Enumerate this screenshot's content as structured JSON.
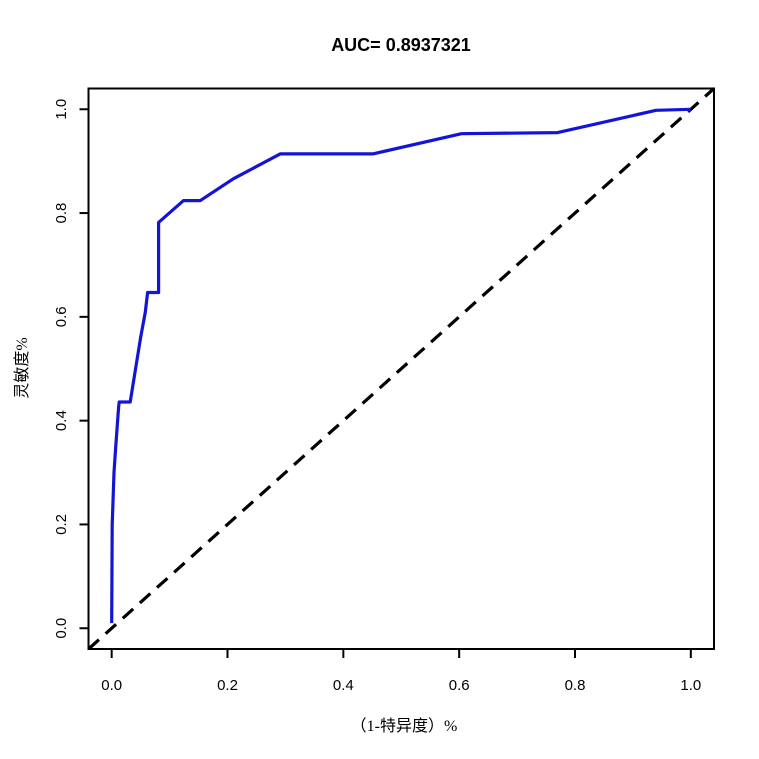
{
  "chart_data": {
    "type": "line",
    "title": "AUC= 0.8937321",
    "auc": 0.8937321,
    "xlabel": "（1-特异度）%",
    "ylabel": "灵敏度%",
    "xlim": [
      0,
      1
    ],
    "ylim": [
      0,
      1
    ],
    "x_ticks": [
      0.0,
      0.2,
      0.4,
      0.6,
      0.8,
      1.0
    ],
    "y_ticks": [
      0.0,
      0.2,
      0.4,
      0.6,
      0.8,
      1.0
    ],
    "x_tick_labels": [
      "0.0",
      "0.2",
      "0.4",
      "0.6",
      "0.8",
      "1.0"
    ],
    "y_tick_labels": [
      "0.0",
      "0.2",
      "0.4",
      "0.6",
      "0.8",
      "1.0"
    ],
    "grid": false,
    "legend_position": "none",
    "box": true,
    "colors": {
      "roc_curve": "#1414d6",
      "reference_line": "#000000",
      "axis": "#000000",
      "background": "#ffffff"
    },
    "series": [
      {
        "name": "roc-curve",
        "style": "solid",
        "color": "#1414d6",
        "width": 3.2,
        "points": [
          [
            0.0,
            0.01
          ],
          [
            0.001,
            0.2
          ],
          [
            0.004,
            0.3
          ],
          [
            0.007,
            0.349
          ],
          [
            0.012,
            0.426
          ],
          [
            0.013,
            0.436
          ],
          [
            0.032,
            0.436
          ],
          [
            0.05,
            0.56
          ],
          [
            0.058,
            0.609
          ],
          [
            0.062,
            0.647
          ],
          [
            0.081,
            0.647
          ],
          [
            0.081,
            0.782
          ],
          [
            0.124,
            0.824
          ],
          [
            0.153,
            0.824
          ],
          [
            0.21,
            0.866
          ],
          [
            0.291,
            0.914
          ],
          [
            0.451,
            0.914
          ],
          [
            0.604,
            0.953
          ],
          [
            0.77,
            0.955
          ],
          [
            0.94,
            0.998
          ],
          [
            1.0,
            1.0
          ]
        ]
      },
      {
        "name": "reference-diagonal",
        "style": "dashed",
        "color": "#000000",
        "width": 3.2,
        "dash": "14 9",
        "points": [
          [
            -0.04,
            -0.04
          ],
          [
            1.04,
            1.04
          ]
        ]
      }
    ]
  }
}
